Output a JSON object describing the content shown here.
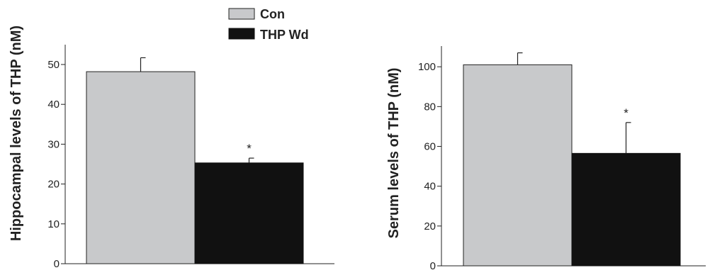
{
  "legend": {
    "items": [
      {
        "label": "Con",
        "color": "#c8c9cb"
      },
      {
        "label": "THP Wd",
        "color": "#111111"
      }
    ]
  },
  "chart_data": [
    {
      "type": "bar",
      "categories": [
        "Con",
        "THP Wd"
      ],
      "values": [
        48.2,
        25.3
      ],
      "error": [
        3.5,
        1.2
      ],
      "significance": [
        "",
        "*"
      ],
      "ylabel": "Hippocampal levels of THP (nM)",
      "ylim": [
        0,
        55
      ],
      "yticks": [
        0,
        10,
        20,
        30,
        40,
        50
      ],
      "colors": [
        "#c8c9cb",
        "#111111"
      ]
    },
    {
      "type": "bar",
      "categories": [
        "Con",
        "THP Wd"
      ],
      "values": [
        101,
        56.5
      ],
      "error": [
        6,
        15.5
      ],
      "significance": [
        "",
        "*"
      ],
      "ylabel": "Serum levels of THP (nM)",
      "ylim": [
        0,
        110
      ],
      "yticks": [
        0,
        20,
        40,
        60,
        80,
        100
      ],
      "colors": [
        "#c8c9cb",
        "#111111"
      ]
    }
  ]
}
